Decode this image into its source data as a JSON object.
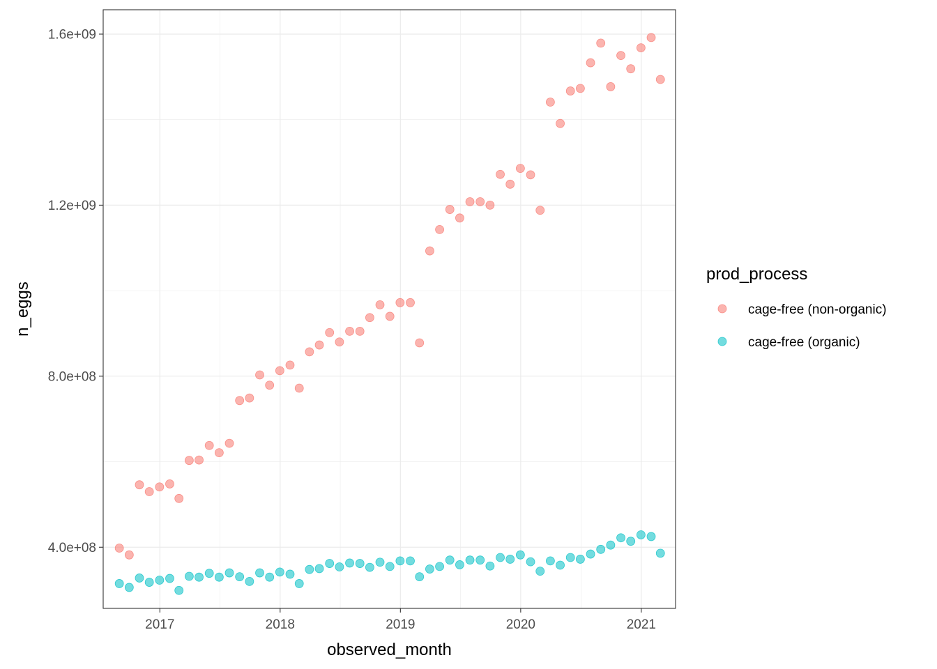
{
  "chart_data": {
    "type": "scatter",
    "xlabel": "observed_month",
    "ylabel": "n_eggs",
    "xlim": [
      "2016-07-13",
      "2021-04-15"
    ],
    "ylim": [
      257000000,
      1657000000
    ],
    "x_ticks": [
      {
        "date": "2017-01-01",
        "label": "2017"
      },
      {
        "date": "2018-01-01",
        "label": "2018"
      },
      {
        "date": "2019-01-01",
        "label": "2019"
      },
      {
        "date": "2020-01-01",
        "label": "2020"
      },
      {
        "date": "2021-01-01",
        "label": "2021"
      }
    ],
    "y_ticks": [
      {
        "value": 400000000,
        "label": "4.0e+08"
      },
      {
        "value": 800000000,
        "label": "8.0e+08"
      },
      {
        "value": 1200000000,
        "label": "1.2e+09"
      },
      {
        "value": 1600000000,
        "label": "1.6e+09"
      }
    ],
    "grid": true,
    "legend": {
      "title": "prod_process",
      "position": "right"
    },
    "x": [
      "2016-08-31",
      "2016-09-30",
      "2016-10-31",
      "2016-11-30",
      "2016-12-31",
      "2017-01-31",
      "2017-02-28",
      "2017-03-31",
      "2017-04-30",
      "2017-05-31",
      "2017-06-30",
      "2017-07-31",
      "2017-08-31",
      "2017-09-30",
      "2017-10-31",
      "2017-11-30",
      "2017-12-31",
      "2018-01-31",
      "2018-02-28",
      "2018-03-31",
      "2018-04-30",
      "2018-05-31",
      "2018-06-30",
      "2018-07-31",
      "2018-08-31",
      "2018-09-30",
      "2018-10-31",
      "2018-11-30",
      "2018-12-31",
      "2019-01-31",
      "2019-02-28",
      "2019-03-31",
      "2019-04-30",
      "2019-05-31",
      "2019-06-30",
      "2019-07-31",
      "2019-08-31",
      "2019-09-30",
      "2019-10-31",
      "2019-11-30",
      "2019-12-31",
      "2020-01-31",
      "2020-02-29",
      "2020-03-31",
      "2020-04-30",
      "2020-05-31",
      "2020-06-30",
      "2020-07-31",
      "2020-08-31",
      "2020-09-30",
      "2020-10-31",
      "2020-11-30",
      "2020-12-31",
      "2021-01-31",
      "2021-02-28"
    ],
    "series": [
      {
        "name": "cage-free (non-organic)",
        "color": "#F8766D",
        "values": [
          398000000,
          382000000,
          546000000,
          530000000,
          541000000,
          548000000,
          514000000,
          603000000,
          604000000,
          638000000,
          621000000,
          643000000,
          743000000,
          749000000,
          803000000,
          779000000,
          813000000,
          826000000,
          772000000,
          857000000,
          873000000,
          902000000,
          880000000,
          905000000,
          905000000,
          937000000,
          967000000,
          940000000,
          972000000,
          972000000,
          878000000,
          1093000000,
          1143000000,
          1190000000,
          1170000000,
          1208000000,
          1208000000,
          1200000000,
          1272000000,
          1249000000,
          1286000000,
          1271000000,
          1188000000,
          1441000000,
          1391000000,
          1467000000,
          1473000000,
          1533000000,
          1579000000,
          1477000000,
          1550000000,
          1519000000,
          1568000000,
          1592000000,
          1494000000
        ]
      },
      {
        "name": "cage-free (organic)",
        "color": "#00BFC4",
        "values": [
          315000000,
          306000000,
          328000000,
          318000000,
          323000000,
          327000000,
          299000000,
          332000000,
          330000000,
          339000000,
          330000000,
          340000000,
          331000000,
          320000000,
          340000000,
          330000000,
          342000000,
          337000000,
          315000000,
          348000000,
          350000000,
          362000000,
          354000000,
          363000000,
          362000000,
          353000000,
          365000000,
          355000000,
          368000000,
          368000000,
          331000000,
          349000000,
          355000000,
          370000000,
          359000000,
          370000000,
          370000000,
          356000000,
          376000000,
          372000000,
          382000000,
          366000000,
          344000000,
          368000000,
          358000000,
          376000000,
          372000000,
          384000000,
          395000000,
          405000000,
          422000000,
          414000000,
          429000000,
          425000000,
          386000000
        ]
      }
    ]
  }
}
